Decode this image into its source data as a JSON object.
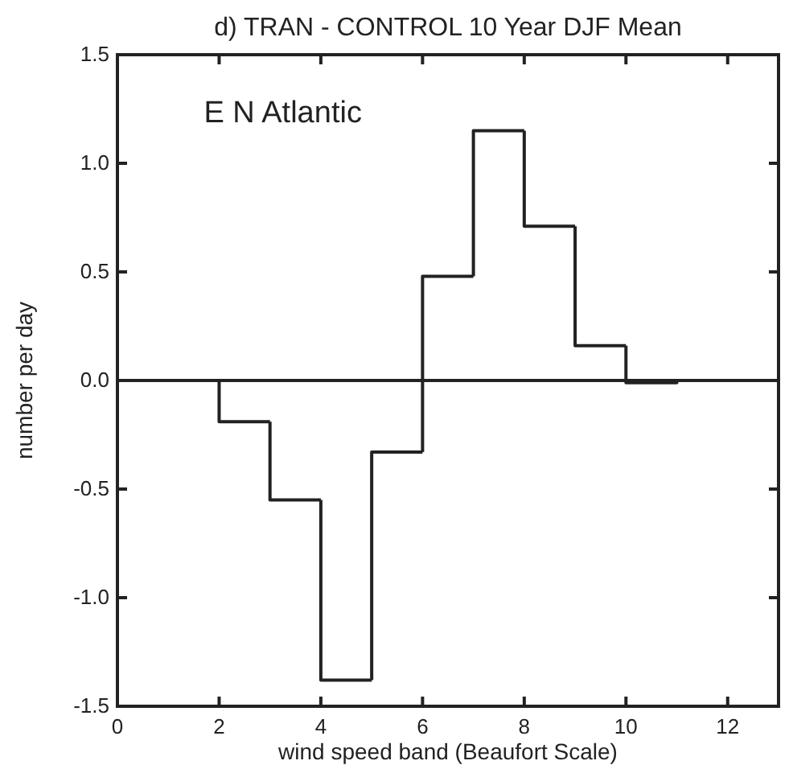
{
  "chart_data": {
    "type": "histogram",
    "title": "d) TRAN - CONTROL 10 Year DJF Mean",
    "xlabel": "wind speed band (Beaufort Scale)",
    "ylabel": "number per day",
    "annotations": [
      "E N Atlantic"
    ],
    "bins": [
      2,
      3,
      4,
      5,
      6,
      7,
      8,
      9,
      10,
      11
    ],
    "values": [
      -0.19,
      -0.55,
      -1.38,
      -0.33,
      0.48,
      1.15,
      0.71,
      0.16,
      -0.01
    ],
    "color": "#222222",
    "xlim": [
      0,
      13
    ],
    "xticks": [
      0,
      2,
      4,
      6,
      8,
      10,
      12
    ],
    "ylim": [
      -1.5,
      1.5
    ],
    "yticks": [
      {
        "value": -1.5,
        "label": "-1.5"
      },
      {
        "value": -1.0,
        "label": "-1.0"
      },
      {
        "value": -0.5,
        "label": "-0.5"
      },
      {
        "value": 0,
        "label": "0.0"
      },
      {
        "value": 0.5,
        "label": "0.5"
      },
      {
        "value": 1.0,
        "label": "1.0"
      },
      {
        "value": 1.5,
        "label": "1.5"
      }
    ],
    "ref_lines": [
      {
        "axis": "y",
        "value": 0,
        "color": "#222222"
      }
    ]
  }
}
